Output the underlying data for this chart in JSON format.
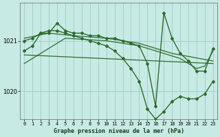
{
  "title": "Graphe pression niveau de la mer (hPa)",
  "background_color": "#c8eae4",
  "grid_color": "#a0d0cc",
  "line_color": "#2d6a2d",
  "xlim": [
    -0.5,
    23.5
  ],
  "ylim": [
    1019.45,
    1021.75
  ],
  "yticks": [
    1020,
    1021
  ],
  "xticks": [
    0,
    1,
    2,
    3,
    4,
    5,
    6,
    7,
    8,
    9,
    10,
    11,
    12,
    13,
    14,
    15,
    16,
    17,
    18,
    19,
    20,
    21,
    22,
    23
  ],
  "lines": [
    {
      "x": [
        0,
        1,
        2,
        3,
        4,
        5,
        6,
        7,
        8,
        9,
        10,
        11,
        12,
        13,
        14,
        15,
        16,
        17,
        18,
        19,
        20,
        21,
        22,
        23
      ],
      "y": [
        1020.8,
        1020.9,
        1021.15,
        1021.15,
        1021.35,
        1021.2,
        1021.15,
        1021.15,
        1021.1,
        1021.1,
        1021.05,
        1021.05,
        1021.0,
        1020.95,
        1020.9,
        1020.55,
        1019.7,
        1021.55,
        1021.05,
        1020.75,
        1020.6,
        1020.4,
        1020.4,
        1020.85
      ],
      "marker": true,
      "lw": 1.0
    },
    {
      "x": [
        0,
        1,
        2,
        3,
        4,
        5,
        6,
        7,
        8,
        9,
        10,
        11,
        12,
        13,
        14,
        15,
        16,
        17,
        18,
        19,
        20,
        21,
        22,
        23
      ],
      "y": [
        1021.0,
        1021.05,
        1021.15,
        1021.2,
        1021.2,
        1021.15,
        1021.1,
        1021.05,
        1021.0,
        1020.95,
        1020.9,
        1020.8,
        1020.65,
        1020.45,
        1020.2,
        1019.65,
        1019.45,
        1019.6,
        1019.8,
        1019.9,
        1019.85,
        1019.85,
        1019.95,
        1020.2
      ],
      "marker": true,
      "lw": 1.0
    },
    {
      "x": [
        0,
        23
      ],
      "y": [
        1020.72,
        1020.55
      ],
      "marker": false,
      "lw": 0.9
    },
    {
      "x": [
        0,
        5,
        10,
        14,
        17,
        18,
        19,
        20,
        21,
        22,
        23
      ],
      "y": [
        1020.55,
        1021.05,
        1021.0,
        1020.9,
        1020.75,
        1020.7,
        1020.65,
        1020.55,
        1020.45,
        1020.5,
        1020.8
      ],
      "marker": false,
      "lw": 0.9
    },
    {
      "x": [
        0,
        3,
        6,
        10,
        14,
        18,
        23
      ],
      "y": [
        1021.05,
        1021.15,
        1021.1,
        1021.05,
        1020.95,
        1020.75,
        1020.6
      ],
      "marker": false,
      "lw": 0.9
    }
  ]
}
